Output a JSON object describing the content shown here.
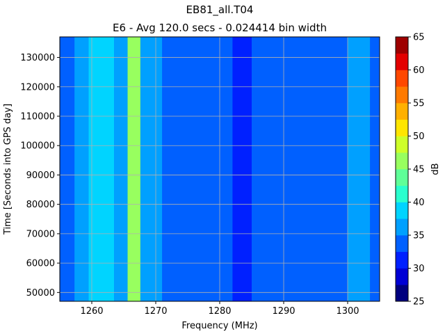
{
  "chart_data": {
    "type": "heatmap",
    "title": "EB81_all.T04",
    "subtitle": "E6 - Avg 120.0 secs - 0.024414 bin width",
    "xlabel": "Frequency (MHz)",
    "ylabel": "Time [Seconds into GPS day]",
    "xlim": [
      1255,
      1305
    ],
    "ylim": [
      47000,
      137000
    ],
    "x_ticks": [
      1260,
      1270,
      1280,
      1290,
      1300
    ],
    "y_ticks": [
      50000,
      60000,
      70000,
      80000,
      90000,
      100000,
      110000,
      120000,
      130000
    ],
    "grid": true,
    "colorbar": {
      "label": "dB",
      "min": 25,
      "max": 65,
      "ticks": [
        25,
        30,
        35,
        40,
        45,
        50,
        55,
        60,
        65
      ],
      "levels": [
        25,
        27.5,
        30,
        32.5,
        35,
        37.5,
        40,
        42.5,
        45,
        47.5,
        50,
        52.5,
        55,
        57.5,
        60,
        62.5,
        65
      ],
      "colors": [
        "#00007f",
        "#0000d5",
        "#0020ff",
        "#0060ff",
        "#00a0ff",
        "#00d4ff",
        "#29ffce",
        "#5fff98",
        "#98ff5f",
        "#ceff29",
        "#ffe600",
        "#ffb000",
        "#ff7a00",
        "#ff4800",
        "#e30000",
        "#9e0000"
      ]
    },
    "bands": [
      {
        "from": 1255,
        "to": 1257.3,
        "db": 34
      },
      {
        "from": 1257.3,
        "to": 1259.5,
        "db": 36
      },
      {
        "from": 1259.5,
        "to": 1263.5,
        "db": 38
      },
      {
        "from": 1263.5,
        "to": 1265.6,
        "db": 36.5
      },
      {
        "from": 1265.6,
        "to": 1267.6,
        "db": 46
      },
      {
        "from": 1267.6,
        "to": 1271,
        "db": 36
      },
      {
        "from": 1271,
        "to": 1282,
        "db": 33.5
      },
      {
        "from": 1282,
        "to": 1285,
        "db": 30.5
      },
      {
        "from": 1285,
        "to": 1300,
        "db": 33.5
      },
      {
        "from": 1300,
        "to": 1303.5,
        "db": 36
      },
      {
        "from": 1303.5,
        "to": 1305,
        "db": 33.5
      }
    ]
  }
}
